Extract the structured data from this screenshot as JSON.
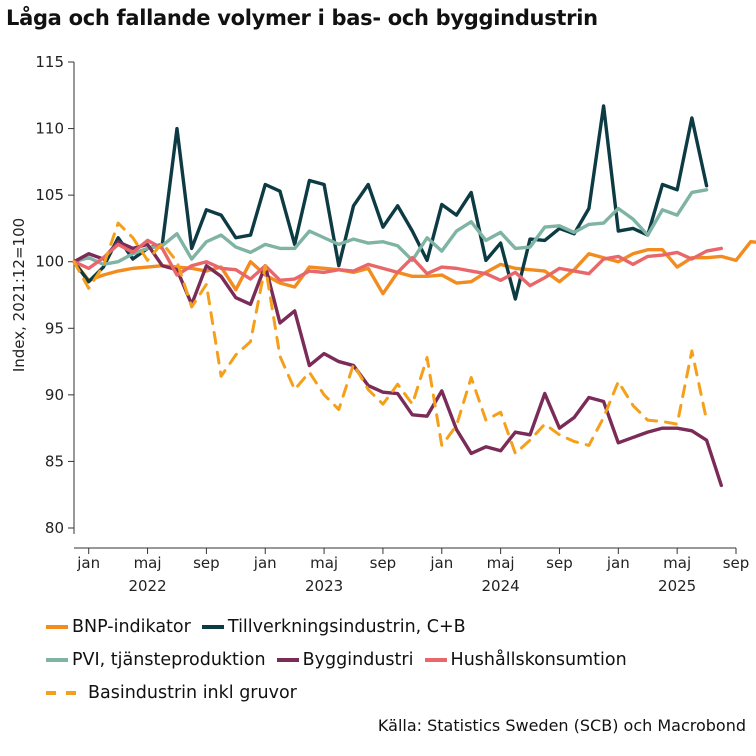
{
  "title": "Låga och fallande volymer i bas- och byggindustrin",
  "source": "Källa: Statistics Sweden (SCB) och Macrobond",
  "chart_data": {
    "type": "line",
    "title": "Låga och fallande volymer i bas- och byggindustrin",
    "ylabel": "Index, 2021:12=100",
    "xlabel": "",
    "ylim": [
      80,
      115
    ],
    "yticks": [
      80,
      85,
      90,
      95,
      100,
      105,
      110,
      115
    ],
    "x_start": "2021-12",
    "x_end": "2025-09",
    "month_ticks": [
      "jan",
      "maj",
      "sep",
      "jan",
      "maj",
      "sep",
      "jan",
      "maj",
      "sep",
      "jan",
      "maj",
      "sep"
    ],
    "year_labels": [
      "2022",
      "2023",
      "2024",
      "2025"
    ],
    "grid": false,
    "legend_position": "bottom",
    "colors": {
      "bnp": "#F28C1E",
      "tillverkning": "#0D3B44",
      "pvi": "#7FB3A4",
      "bygg": "#7B2B57",
      "hushall": "#E8676A",
      "basindustri": "#F5A01B"
    },
    "series": [
      {
        "name": "BNP-indikator",
        "key": "bnp",
        "dash": false,
        "values": [
          100.0,
          98.6,
          99.0,
          99.3,
          99.5,
          99.6,
          99.7,
          99.6,
          99.5,
          99.3,
          99.6,
          97.9,
          100.0,
          99.0,
          98.4,
          98.1,
          99.6,
          99.5,
          99.4,
          99.2,
          99.5,
          97.6,
          99.2,
          98.9,
          98.9,
          99.0,
          98.4,
          98.5,
          99.2,
          99.8,
          99.5,
          99.4,
          99.3,
          98.5,
          99.4,
          100.6,
          100.3,
          100.0,
          100.6,
          100.9,
          100.9,
          99.6,
          100.3,
          100.3,
          100.4,
          100.1,
          101.5,
          101.4
        ]
      },
      {
        "name": "Tillverkningsindustrin, C+B",
        "key": "tillverkning",
        "dash": false,
        "values": [
          100.0,
          98.5,
          99.6,
          101.8,
          100.2,
          101.0,
          101.3,
          110.0,
          101.0,
          103.9,
          103.5,
          101.8,
          102.0,
          105.8,
          105.3,
          101.3,
          106.1,
          105.8,
          99.7,
          104.2,
          105.8,
          102.6,
          104.2,
          102.3,
          100.1,
          104.3,
          103.5,
          105.2,
          100.1,
          101.4,
          97.2,
          101.7,
          101.6,
          102.5,
          102.1,
          104.0,
          111.7,
          102.3,
          102.5,
          102.0,
          105.8,
          105.4,
          110.8,
          105.7
        ]
      },
      {
        "name": "PVI, tjänsteproduktion",
        "key": "pvi",
        "dash": false,
        "values": [
          100.0,
          100.3,
          99.8,
          100.0,
          100.6,
          101.0,
          101.2,
          102.1,
          100.2,
          101.5,
          102.0,
          101.1,
          100.7,
          101.3,
          101.0,
          101.0,
          102.3,
          101.8,
          101.3,
          101.7,
          101.4,
          101.5,
          101.2,
          100.1,
          101.8,
          100.8,
          102.3,
          103.0,
          101.6,
          102.2,
          101.0,
          101.1,
          102.6,
          102.7,
          102.2,
          102.8,
          102.9,
          104.0,
          103.2,
          102.0,
          103.9,
          103.5,
          105.2,
          105.4
        ]
      },
      {
        "name": "Byggindustri",
        "key": "bygg",
        "dash": false,
        "values": [
          100.0,
          100.6,
          100.2,
          101.5,
          101.0,
          101.3,
          99.7,
          99.4,
          96.8,
          99.7,
          98.9,
          97.3,
          96.8,
          99.7,
          95.4,
          96.3,
          92.2,
          93.1,
          92.5,
          92.2,
          90.7,
          90.2,
          90.1,
          88.5,
          88.4,
          90.3,
          87.4,
          85.6,
          86.1,
          85.8,
          87.2,
          87.0,
          90.1,
          87.5,
          88.3,
          89.8,
          89.5,
          86.4,
          86.8,
          87.2,
          87.5,
          87.5,
          87.3,
          86.6,
          83.2
        ]
      },
      {
        "name": "Hushållskonsumtion",
        "key": "hushall",
        "dash": false,
        "values": [
          100.0,
          99.5,
          100.3,
          101.3,
          100.7,
          101.6,
          101.0,
          99.0,
          99.7,
          100.0,
          99.5,
          99.4,
          98.7,
          99.7,
          98.6,
          98.7,
          99.3,
          99.2,
          99.4,
          99.3,
          99.8,
          99.5,
          99.2,
          100.3,
          99.1,
          99.6,
          99.5,
          99.3,
          99.1,
          98.6,
          99.2,
          98.2,
          98.8,
          99.5,
          99.3,
          99.1,
          100.2,
          100.4,
          99.8,
          100.4,
          100.5,
          100.7,
          100.2,
          100.8,
          101.0
        ]
      },
      {
        "name": "Basindustrin inkl gruvor",
        "key": "basindustri",
        "dash": true,
        "values": [
          100.0,
          98.0,
          99.7,
          102.9,
          101.8,
          100.1,
          101.4,
          100.0,
          96.6,
          98.3,
          91.4,
          93.0,
          94.0,
          99.7,
          92.9,
          90.4,
          91.7,
          90.0,
          88.9,
          92.3,
          90.4,
          89.3,
          90.8,
          89.3,
          92.8,
          86.2,
          87.7,
          91.3,
          88.1,
          88.7,
          85.6,
          86.6,
          87.8,
          87.0,
          86.5,
          86.2,
          88.3,
          91.0,
          89.2,
          88.1,
          88.0,
          87.8,
          93.3,
          88.1
        ]
      }
    ]
  }
}
